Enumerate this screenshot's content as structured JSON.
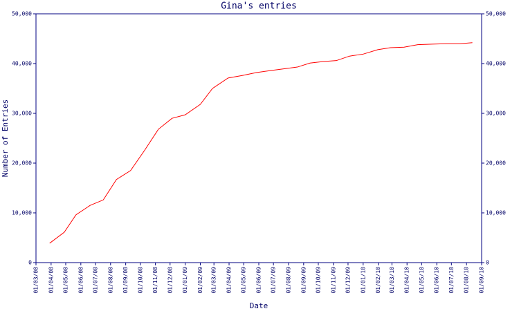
{
  "chart_data": {
    "type": "line",
    "title": "Gina's entries",
    "x_label": "Date",
    "y_label": "Number of Entries",
    "color": "#ff0000",
    "axis_color": "#000080",
    "x": [
      "2008-03-29",
      "2008-04-28",
      "2008-05-22",
      "2008-06-20",
      "2008-07-17",
      "2008-08-13",
      "2008-09-11",
      "2008-10-10",
      "2008-11-07",
      "2008-12-05",
      "2009-01-01",
      "2009-02-01",
      "2009-02-26",
      "2009-03-30",
      "2009-04-28",
      "2009-05-27",
      "2009-06-25",
      "2009-07-26",
      "2009-08-19",
      "2009-09-14",
      "2009-10-10",
      "2009-11-07",
      "2009-12-04",
      "2010-01-01",
      "2010-01-31",
      "2010-02-26",
      "2010-03-26",
      "2010-04-23",
      "2010-05-22",
      "2010-06-22",
      "2010-07-19",
      "2010-08-13"
    ],
    "values": [
      3900,
      6100,
      9600,
      11500,
      12600,
      16700,
      18500,
      22600,
      26800,
      29000,
      29700,
      31800,
      35000,
      37100,
      37600,
      38200,
      38600,
      39000,
      39300,
      40100,
      40400,
      40600,
      41500,
      41900,
      42800,
      43200,
      43300,
      43800,
      43900,
      44000,
      44000,
      44200
    ],
    "xlim": [
      "2008-03-01",
      "2010-09-01"
    ],
    "xticks": [
      {
        "value": "2008-03-01",
        "label": "01/03/08"
      },
      {
        "value": "2008-04-01",
        "label": "01/04/08"
      },
      {
        "value": "2008-05-01",
        "label": "01/05/08"
      },
      {
        "value": "2008-06-01",
        "label": "01/06/08"
      },
      {
        "value": "2008-07-01",
        "label": "01/07/08"
      },
      {
        "value": "2008-08-01",
        "label": "01/08/08"
      },
      {
        "value": "2008-09-01",
        "label": "01/09/08"
      },
      {
        "value": "2008-10-01",
        "label": "01/10/08"
      },
      {
        "value": "2008-11-01",
        "label": "01/11/08"
      },
      {
        "value": "2008-12-01",
        "label": "01/12/08"
      },
      {
        "value": "2009-01-01",
        "label": "01/01/09"
      },
      {
        "value": "2009-02-01",
        "label": "01/02/09"
      },
      {
        "value": "2009-03-01",
        "label": "01/03/09"
      },
      {
        "value": "2009-04-01",
        "label": "01/04/09"
      },
      {
        "value": "2009-05-01",
        "label": "01/05/09"
      },
      {
        "value": "2009-06-01",
        "label": "01/06/09"
      },
      {
        "value": "2009-07-01",
        "label": "01/07/09"
      },
      {
        "value": "2009-08-01",
        "label": "01/08/09"
      },
      {
        "value": "2009-09-01",
        "label": "01/09/09"
      },
      {
        "value": "2009-10-01",
        "label": "01/10/09"
      },
      {
        "value": "2009-11-01",
        "label": "01/11/09"
      },
      {
        "value": "2009-12-01",
        "label": "01/12/09"
      },
      {
        "value": "2010-01-01",
        "label": "01/01/10"
      },
      {
        "value": "2010-02-01",
        "label": "01/02/10"
      },
      {
        "value": "2010-03-01",
        "label": "01/03/10"
      },
      {
        "value": "2010-04-01",
        "label": "01/04/10"
      },
      {
        "value": "2010-05-01",
        "label": "01/05/10"
      },
      {
        "value": "2010-06-01",
        "label": "01/06/10"
      },
      {
        "value": "2010-07-01",
        "label": "01/07/10"
      },
      {
        "value": "2010-08-01",
        "label": "01/08/10"
      },
      {
        "value": "2010-09-01",
        "label": "01/09/10"
      }
    ],
    "ylim": [
      0,
      50000
    ],
    "yticks": [
      0,
      {
        "value": 10000,
        "label": "10,000"
      },
      {
        "value": 20000,
        "label": "20,000"
      },
      {
        "value": 30000,
        "label": "30,000"
      },
      {
        "value": 40000,
        "label": "40,000"
      },
      {
        "value": 50000,
        "label": "50,000"
      }
    ],
    "right_axis_labels": true
  }
}
